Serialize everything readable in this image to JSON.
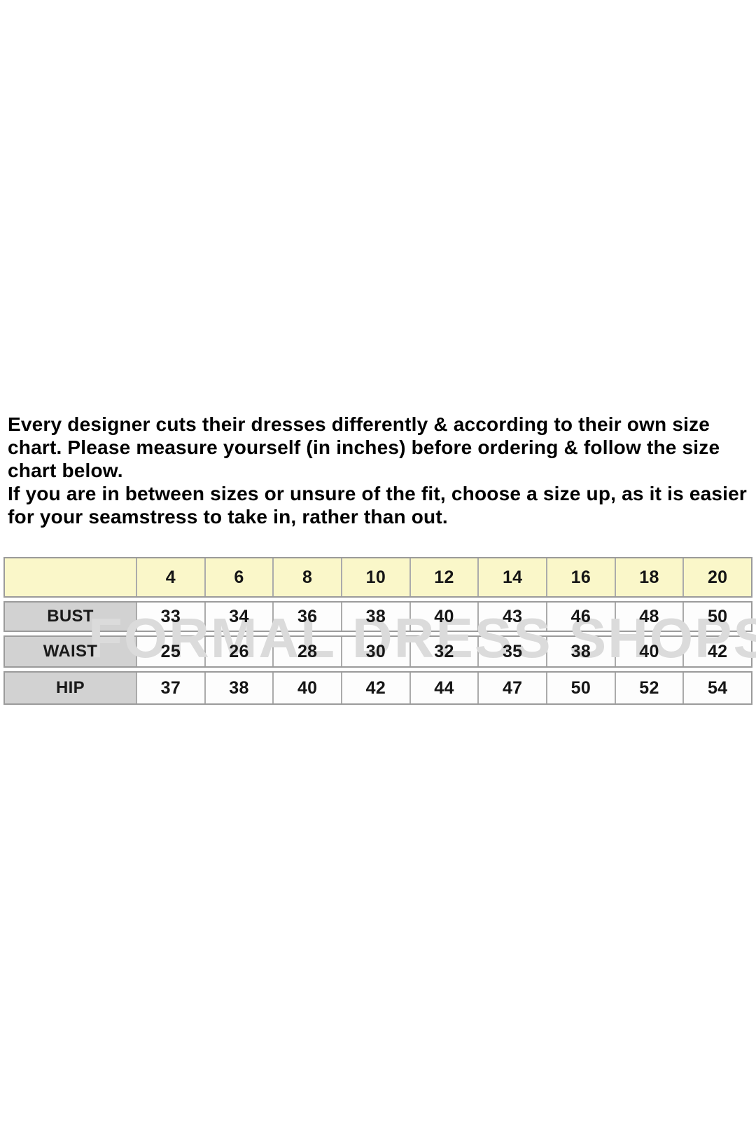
{
  "intro": {
    "lines": [
      "Every designer cuts their dresses differently & according to their own size",
      "chart. Please measure yourself (in inches) before ordering & follow the size",
      "chart below.",
      "If you are in between sizes or unsure of the fit, choose a size up, as it is easier",
      "for your seamstress to take in, rather than out."
    ]
  },
  "watermark": "FORMAL DRESS SHOPS",
  "size_chart": {
    "columns": [
      "",
      "4",
      "6",
      "8",
      "10",
      "12",
      "14",
      "16",
      "18",
      "20"
    ],
    "rows": [
      {
        "label": "BUST",
        "values": [
          "33",
          "34",
          "36",
          "38",
          "40",
          "43",
          "46",
          "48",
          "50"
        ]
      },
      {
        "label": "WAIST",
        "values": [
          "25",
          "26",
          "28",
          "30",
          "32",
          "35",
          "38",
          "40",
          "42"
        ]
      },
      {
        "label": "HIP",
        "values": [
          "37",
          "38",
          "40",
          "42",
          "44",
          "47",
          "50",
          "52",
          "54"
        ]
      }
    ]
  },
  "chart_data": {
    "type": "table",
    "title": "",
    "columns": [
      "",
      "4",
      "6",
      "8",
      "10",
      "12",
      "14",
      "16",
      "18",
      "20"
    ],
    "rows": [
      [
        "BUST",
        33,
        34,
        36,
        38,
        40,
        43,
        46,
        48,
        50
      ],
      [
        "WAIST",
        25,
        26,
        28,
        30,
        32,
        35,
        38,
        40,
        42
      ],
      [
        "HIP",
        37,
        38,
        40,
        42,
        44,
        47,
        50,
        52,
        54
      ]
    ]
  },
  "colors": {
    "header_background": "#faf7c9",
    "label_background": "#d2d2d2",
    "row_border": "#9b9b9b",
    "watermark": "#dbdbdb",
    "text": "#000000"
  }
}
